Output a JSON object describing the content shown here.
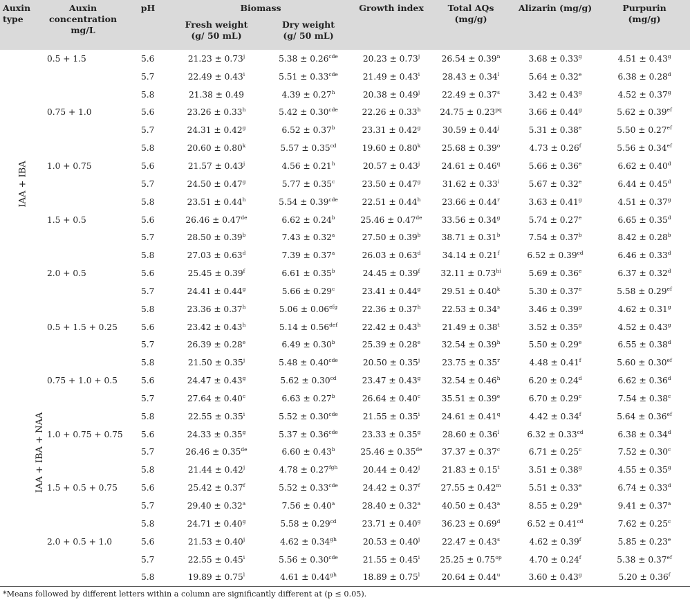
{
  "header": {
    "auxin_type": [
      "Auxin",
      "type"
    ],
    "auxin_conc": [
      "Auxin",
      "concentration",
      "mg/L"
    ],
    "ph": "pH",
    "biomass": "Biomass",
    "fresh_weight": [
      "Fresh weight",
      "(g/ 50 mL)"
    ],
    "dry_weight": [
      "Dry weight",
      "(g/ 50 mL)"
    ],
    "growth_index": "Growth index",
    "total_aqs": [
      "Total AQs",
      "(mg/g)"
    ],
    "alizarin": "Alizarin (mg/g)",
    "purpurin": [
      "Purpurin",
      "(mg/g)"
    ]
  },
  "groups": [
    {
      "label": "IAA + IBA",
      "rows": 15
    },
    {
      "label": "IAA + IBA + NAA",
      "rows": 15
    }
  ],
  "rows": [
    {
      "conc": "0.5 + 1.5",
      "ph": "5.6",
      "fw": "21.23 ± 0.73",
      "fw_s": "j",
      "dw": "5.38 ± 0.26",
      "dw_s": "cde",
      "gi": "20.23 ± 0.73",
      "gi_s": "j",
      "aq": "26.54 ± 0.39",
      "aq_s": "n",
      "al": "3.68 ± 0.33",
      "al_s": "g",
      "pu": "4.51 ± 0.43",
      "pu_s": "g"
    },
    {
      "conc": "",
      "ph": "5.7",
      "fw": "22.49 ± 0.43",
      "fw_s": "i",
      "dw": "5.51 ± 0.33",
      "dw_s": "cde",
      "gi": "21.49 ± 0.43",
      "gi_s": "i",
      "aq": "28.43 ± 0.34",
      "aq_s": "l",
      "al": "5.64 ± 0.32",
      "al_s": "e",
      "pu": "6.38 ± 0.28",
      "pu_s": "d"
    },
    {
      "conc": "",
      "ph": "5.8",
      "fw": "21.38 ± 0.49",
      "fw_s": "",
      "dw": "4.39 ± 0.27",
      "dw_s": "h",
      "gi": "20.38 ± 0.49",
      "gi_s": "j",
      "aq": "22.49 ± 0.37",
      "aq_s": "s",
      "al": "3.42 ± 0.43",
      "al_s": "g",
      "pu": "4.52 ± 0.37",
      "pu_s": "g"
    },
    {
      "conc": "0.75 + 1.0",
      "ph": "5.6",
      "fw": "23.26 ± 0.33",
      "fw_s": "h",
      "dw": "5.42 ± 0.30",
      "dw_s": "cde",
      "gi": "22.26 ± 0.33",
      "gi_s": "h",
      "aq": "24.75 ± 0.23",
      "aq_s": "pq",
      "al": "3.66 ± 0.44",
      "al_s": "g",
      "pu": "5.62 ± 0.39",
      "pu_s": "ef"
    },
    {
      "conc": "",
      "ph": "5.7",
      "fw": "24.31 ± 0.42",
      "fw_s": "g",
      "dw": "6.52 ± 0.37",
      "dw_s": "b",
      "gi": "23.31 ± 0.42",
      "gi_s": "g",
      "aq": "30.59 ± 0.44",
      "aq_s": "j",
      "al": "5.31 ± 0.38",
      "al_s": "e",
      "pu": "5.50 ± 0.27",
      "pu_s": "ef"
    },
    {
      "conc": "",
      "ph": "5.8",
      "fw": "20.60 ± 0.80",
      "fw_s": "k",
      "dw": "5.57 ± 0.35",
      "dw_s": "cd",
      "gi": "19.60 ± 0.80",
      "gi_s": "k",
      "aq": "25.68 ± 0.39",
      "aq_s": "o",
      "al": "4.73 ± 0.26",
      "al_s": "f",
      "pu": "5.56 ± 0.34",
      "pu_s": "ef"
    },
    {
      "conc": "1.0 + 0.75",
      "ph": "5.6",
      "fw": "21.57 ± 0.43",
      "fw_s": "j",
      "dw": "4.56 ± 0.21",
      "dw_s": "h",
      "gi": "20.57 ± 0.43",
      "gi_s": "j",
      "aq": "24.61 ± 0.46",
      "aq_s": "q",
      "al": "5.66 ± 0.36",
      "al_s": "e",
      "pu": "6.62 ± 0.40",
      "pu_s": "d"
    },
    {
      "conc": "",
      "ph": "5.7",
      "fw": "24.50 ± 0.47",
      "fw_s": "g",
      "dw": "5.77 ± 0.35",
      "dw_s": "c",
      "gi": "23.50 ± 0.47",
      "gi_s": "g",
      "aq": "31.62 ± 0.33",
      "aq_s": "i",
      "al": "5.67 ± 0.32",
      "al_s": "e",
      "pu": "6.44 ± 0.45",
      "pu_s": "d"
    },
    {
      "conc": "",
      "ph": "5.8",
      "fw": "23.51 ± 0.44",
      "fw_s": "h",
      "dw": "5.54 ± 0.39",
      "dw_s": "cde",
      "gi": "22.51 ± 0.44",
      "gi_s": "h",
      "aq": "23.66 ± 0.44",
      "aq_s": "r",
      "al": "3.63 ± 0.41",
      "al_s": "g",
      "pu": "4.51 ± 0.37",
      "pu_s": "g"
    },
    {
      "conc": "1.5 + 0.5",
      "ph": "5.6",
      "fw": "26.46 ± 0.47",
      "fw_s": "de",
      "dw": "6.62 ± 0.24",
      "dw_s": "b",
      "gi": "25.46 ± 0.47",
      "gi_s": "de",
      "aq": "33.56 ± 0.34",
      "aq_s": "g",
      "al": "5.74 ± 0.27",
      "al_s": "e",
      "pu": "6.65 ± 0.35",
      "pu_s": "d"
    },
    {
      "conc": "",
      "ph": "5.7",
      "fw": "28.50 ± 0.39",
      "fw_s": "b",
      "dw": "7.43 ± 0.32",
      "dw_s": "a",
      "gi": "27.50 ± 0.39",
      "gi_s": "b",
      "aq": "38.71 ± 0.31",
      "aq_s": "b",
      "al": "7.54 ± 0.37",
      "al_s": "b",
      "pu": "8.42 ± 0.28",
      "pu_s": "b"
    },
    {
      "conc": "",
      "ph": "5.8",
      "fw": "27.03 ± 0.63",
      "fw_s": "d",
      "dw": "7.39 ± 0.37",
      "dw_s": "a",
      "gi": "26.03 ± 0.63",
      "gi_s": "d",
      "aq": "34.14 ± 0.21",
      "aq_s": "f",
      "al": "6.52 ± 0.39",
      "al_s": "cd",
      "pu": "6.46 ± 0.33",
      "pu_s": "d"
    },
    {
      "conc": "2.0 + 0.5",
      "ph": "5.6",
      "fw": "25.45 ± 0.39",
      "fw_s": "f",
      "dw": "6.61 ± 0.35",
      "dw_s": "b",
      "gi": "24.45 ± 0.39",
      "gi_s": "f",
      "aq": "32.11 ± 0.73",
      "aq_s": "hi",
      "al": "5.69 ± 0.36",
      "al_s": "e",
      "pu": "6.37 ± 0.32",
      "pu_s": "d"
    },
    {
      "conc": "",
      "ph": "5.7",
      "fw": "24.41 ± 0.44",
      "fw_s": "g",
      "dw": "5.66 ± 0.29",
      "dw_s": "c",
      "gi": "23.41 ± 0.44",
      "gi_s": "g",
      "aq": "29.51 ± 0.40",
      "aq_s": "k",
      "al": "5.30 ± 0.37",
      "al_s": "e",
      "pu": "5.58 ± 0.29",
      "pu_s": "ef"
    },
    {
      "conc": "",
      "ph": "5.8",
      "fw": "23.36 ± 0.37",
      "fw_s": "h",
      "dw": "5.06 ± 0.06",
      "dw_s": "efg",
      "gi": "22.36 ± 0.37",
      "gi_s": "h",
      "aq": "22.53 ± 0.34",
      "aq_s": "s",
      "al": "3.46 ± 0.39",
      "al_s": "g",
      "pu": "4.62 ± 0.31",
      "pu_s": "g"
    },
    {
      "conc": "0.5 + 1.5 + 0.25",
      "ph": "5.6",
      "fw": "23.42 ± 0.43",
      "fw_s": "h",
      "dw": "5.14 ± 0.56",
      "dw_s": "def",
      "gi": "22.42 ± 0.43",
      "gi_s": "h",
      "aq": "21.49 ± 0.38",
      "aq_s": "t",
      "al": "3.52 ± 0.35",
      "al_s": "g",
      "pu": "4.52 ± 0.43",
      "pu_s": "g"
    },
    {
      "conc": "",
      "ph": "5.7",
      "fw": "26.39 ± 0.28",
      "fw_s": "e",
      "dw": "6.49 ± 0.30",
      "dw_s": "b",
      "gi": "25.39 ± 0.28",
      "gi_s": "e",
      "aq": "32.54 ± 0.39",
      "aq_s": "h",
      "al": "5.50 ± 0.29",
      "al_s": "e",
      "pu": "6.55 ± 0.38",
      "pu_s": "d"
    },
    {
      "conc": "",
      "ph": "5.8",
      "fw": "21.50 ± 0.35",
      "fw_s": "j",
      "dw": "5.48 ± 0.40",
      "dw_s": "cde",
      "gi": "20.50 ± 0.35",
      "gi_s": "j",
      "aq": "23.75 ± 0.35",
      "aq_s": "r",
      "al": "4.48 ± 0.41",
      "al_s": "f",
      "pu": "5.60 ± 0.30",
      "pu_s": "ef"
    },
    {
      "conc": "0.75 + 1.0 + 0.5",
      "ph": "5.6",
      "fw": "24.47 ± 0.43",
      "fw_s": "g",
      "dw": "5.62 ± 0.30",
      "dw_s": "cd",
      "gi": "23.47 ± 0.43",
      "gi_s": "g",
      "aq": "32.54 ± 0.46",
      "aq_s": "h",
      "al": "6.20 ± 0.24",
      "al_s": "d",
      "pu": "6.62 ± 0.36",
      "pu_s": "d"
    },
    {
      "conc": "",
      "ph": "5.7",
      "fw": "27.64 ± 0.40",
      "fw_s": "c",
      "dw": "6.63 ± 0.27",
      "dw_s": "b",
      "gi": "26.64 ± 0.40",
      "gi_s": "c",
      "aq": "35.51 ± 0.39",
      "aq_s": "e",
      "al": "6.70 ± 0.29",
      "al_s": "c",
      "pu": "7.54 ± 0.38",
      "pu_s": "c"
    },
    {
      "conc": "",
      "ph": "5.8",
      "fw": "22.55 ± 0.35",
      "fw_s": "i",
      "dw": "5.52 ± 0.30",
      "dw_s": "cde",
      "gi": "21.55 ± 0.35",
      "gi_s": "i",
      "aq": "24.61 ± 0.41",
      "aq_s": "q",
      "al": "4.42 ± 0.34",
      "al_s": "f",
      "pu": "5.64 ± 0.36",
      "pu_s": "ef"
    },
    {
      "conc": "1.0 + 0.75 + 0.75",
      "ph": "5.6",
      "fw": "24.33 ± 0.35",
      "fw_s": "g",
      "dw": "5.37 ± 0.36",
      "dw_s": "cde",
      "gi": "23.33 ± 0.35",
      "gi_s": "g",
      "aq": "28.60 ± 0.36",
      "aq_s": "l",
      "al": "6.32 ± 0.33",
      "al_s": "cd",
      "pu": "6.38 ± 0.34",
      "pu_s": "d"
    },
    {
      "conc": "",
      "ph": "5.7",
      "fw": "26.46 ± 0.35",
      "fw_s": "de",
      "dw": "6.60 ± 0.43",
      "dw_s": "b",
      "gi": "25.46 ± 0.35",
      "gi_s": "de",
      "aq": "37.37 ± 0.37",
      "aq_s": "c",
      "al": "6.71 ± 0.25",
      "al_s": "c",
      "pu": "7.52 ± 0.30",
      "pu_s": "c"
    },
    {
      "conc": "",
      "ph": "5.8",
      "fw": "21.44 ± 0.42",
      "fw_s": "j",
      "dw": "4.78 ± 0.27",
      "dw_s": "fgh",
      "gi": "20.44 ± 0.42",
      "gi_s": "j",
      "aq": "21.83 ± 0.15",
      "aq_s": "t",
      "al": "3.51 ± 0.38",
      "al_s": "g",
      "pu": "4.55 ± 0.35",
      "pu_s": "g"
    },
    {
      "conc": "1.5 + 0.5 + 0.75",
      "ph": "5.6",
      "fw": "25.42 ± 0.37",
      "fw_s": "f",
      "dw": "5.52 ± 0.33",
      "dw_s": "cde",
      "gi": "24.42 ± 0.37",
      "gi_s": "f",
      "aq": "27.55 ± 0.42",
      "aq_s": "m",
      "al": "5.51 ± 0.33",
      "al_s": "e",
      "pu": "6.74 ± 0.33",
      "pu_s": "d"
    },
    {
      "conc": "",
      "ph": "5.7",
      "fw": "29.40 ± 0.32",
      "fw_s": "a",
      "dw": "7.56 ± 0.40",
      "dw_s": "a",
      "gi": "28.40 ± 0.32",
      "gi_s": "a",
      "aq": "40.50 ± 0.43",
      "aq_s": "a",
      "al": "8.55 ± 0.29",
      "al_s": "a",
      "pu": "9.41 ± 0.37",
      "pu_s": "a"
    },
    {
      "conc": "",
      "ph": "5.8",
      "fw": "24.71 ± 0.40",
      "fw_s": "g",
      "dw": "5.58 ± 0.29",
      "dw_s": "cd",
      "gi": "23.71 ± 0.40",
      "gi_s": "g",
      "aq": "36.23 ± 0.69",
      "aq_s": "d",
      "al": "6.52 ± 0.41",
      "al_s": "cd",
      "pu": "7.62 ± 0.25",
      "pu_s": "c"
    },
    {
      "conc": "2.0 + 0.5 + 1.0",
      "ph": "5.6",
      "fw": "21.53 ± 0.40",
      "fw_s": "j",
      "dw": "4.62 ± 0.34",
      "dw_s": "gh",
      "gi": "20.53 ± 0.40",
      "gi_s": "j",
      "aq": "22.47 ± 0.43",
      "aq_s": "s",
      "al": "4.62 ± 0.39",
      "al_s": "f",
      "pu": "5.85 ± 0.23",
      "pu_s": "e"
    },
    {
      "conc": "",
      "ph": "5.7",
      "fw": "22.55 ± 0.45",
      "fw_s": "i",
      "dw": "5.56 ± 0.30",
      "dw_s": "cde",
      "gi": "21.55 ± 0.45",
      "gi_s": "i",
      "aq": "25.25 ± 0.75",
      "aq_s": "op",
      "al": "4.70 ± 0.24",
      "al_s": "f",
      "pu": "5.38 ± 0.37",
      "pu_s": "ef"
    },
    {
      "conc": "",
      "ph": "5.8",
      "fw": "19.89 ± 0.75",
      "fw_s": "l",
      "dw": "4.61 ± 0.44",
      "dw_s": "gh",
      "gi": "18.89 ± 0.75",
      "gi_s": "l",
      "aq": "20.64 ± 0.44",
      "aq_s": "u",
      "al": "3.60 ± 0.43",
      "al_s": "g",
      "pu": "5.20 ± 0.36",
      "pu_s": "f"
    }
  ],
  "footnote": "*Means followed by different letters within a column are significantly different at (p ≤ 0.05)."
}
